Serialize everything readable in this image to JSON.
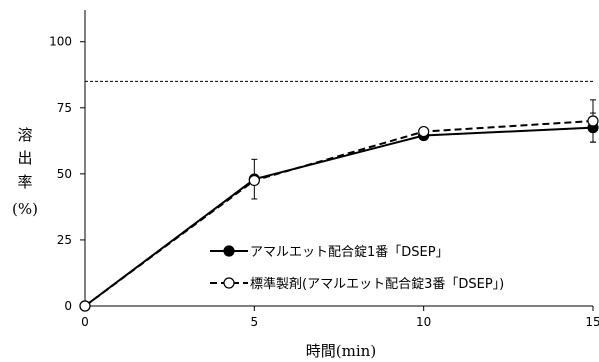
{
  "chart_data": {
    "type": "line",
    "title": "",
    "xlabel": "時間(min)",
    "ylabel_lines": [
      "溶",
      "出",
      "率",
      "(%)"
    ],
    "xlim": [
      0,
      15
    ],
    "ylim": [
      0,
      112
    ],
    "xticks": [
      0,
      5,
      10,
      15
    ],
    "yticks": [
      0,
      25,
      50,
      75,
      100
    ],
    "grid": false,
    "legend_position": "bottom-right",
    "reference_line": {
      "y": 85,
      "style": "dotted"
    },
    "series": [
      {
        "name": "アマルエット配合錠1番「DSEP」",
        "style": "solid",
        "marker": "filled-circle",
        "x": [
          0,
          5,
          10,
          15
        ],
        "y": [
          0,
          48,
          64.5,
          67.5
        ],
        "err": [
          0,
          7.5,
          0,
          5.5
        ]
      },
      {
        "name": "標準製剤(アマルエット配合錠3番「DSEP」)",
        "style": "dashed",
        "marker": "open-circle",
        "x": [
          0,
          5,
          10,
          15
        ],
        "y": [
          0,
          47.5,
          66,
          70
        ],
        "err": [
          0,
          0,
          0,
          8
        ]
      }
    ]
  }
}
